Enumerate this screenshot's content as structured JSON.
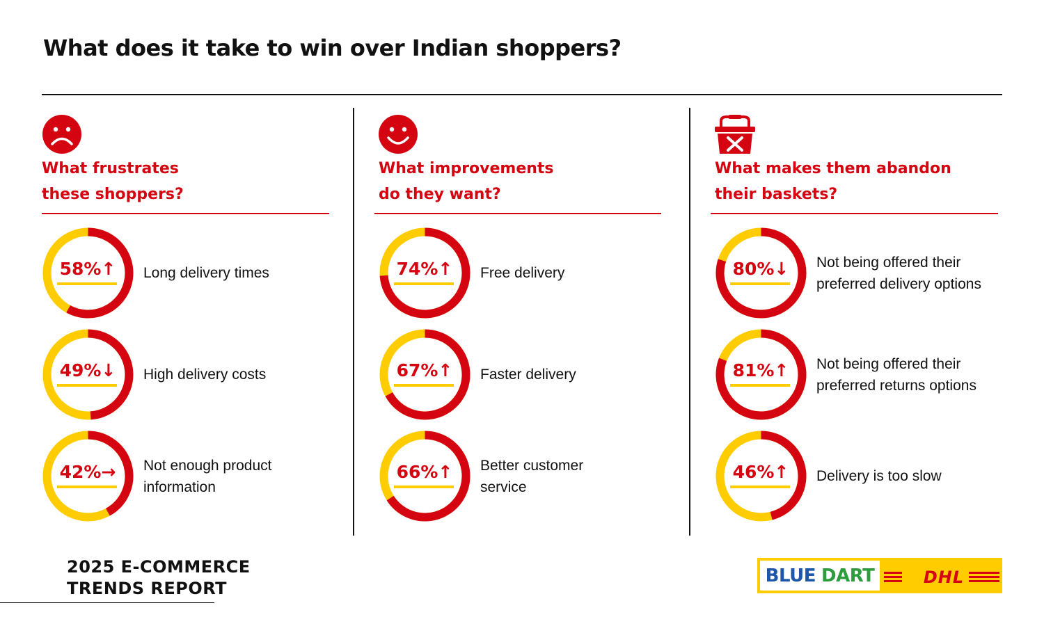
{
  "title": "What does it take to win over Indian shoppers?",
  "footer": {
    "report_title": "2025 E-COMMERCE\nTRENDS REPORT",
    "logo_text": [
      "BLUE",
      "DART",
      "DHL"
    ]
  },
  "colors": {
    "red": "#d40511",
    "yellow": "#ffcc00",
    "text": "#111111"
  },
  "trend_icons": {
    "up": "arrow-up-icon",
    "down": "arrow-down-icon",
    "flat": "arrow-right-icon"
  },
  "columns": [
    {
      "icon": "sad-face-icon",
      "heading": "What frustrates\nthese shoppers?",
      "stats": [
        {
          "label": "58%↑",
          "value": 58,
          "trend": "up",
          "text": "Long delivery times"
        },
        {
          "label": "49%↓",
          "value": 49,
          "trend": "down",
          "text": "High delivery costs"
        },
        {
          "label": "42%→",
          "value": 42,
          "trend": "flat",
          "text": "Not enough product\ninformation"
        }
      ]
    },
    {
      "icon": "happy-face-icon",
      "heading": "What improvements\ndo they want?",
      "stats": [
        {
          "label": "74%↑",
          "value": 74,
          "trend": "up",
          "text": "Free delivery"
        },
        {
          "label": "67%↑",
          "value": 67,
          "trend": "up",
          "text": "Faster delivery"
        },
        {
          "label": "66%↑",
          "value": 66,
          "trend": "up",
          "text": "Better customer\nservice"
        }
      ]
    },
    {
      "icon": "abandoned-basket-icon",
      "heading": "What makes them abandon\ntheir baskets?",
      "stats": [
        {
          "label": "80%↓",
          "value": 80,
          "trend": "down",
          "text": "Not being offered their\npreferred delivery options"
        },
        {
          "label": "81%↑",
          "value": 81,
          "trend": "up",
          "text": "Not being offered their\npreferred returns options"
        },
        {
          "label": "46%↑",
          "value": 46,
          "trend": "up",
          "text": "Delivery is too slow"
        }
      ]
    }
  ],
  "chart_data": {
    "type": "pie",
    "title": "What does it take to win over Indian shoppers?",
    "series": [
      {
        "name": "What frustrates these shoppers?",
        "categories": [
          "Long delivery times",
          "High delivery costs",
          "Not enough product information"
        ],
        "values": [
          58,
          49,
          42
        ]
      },
      {
        "name": "What improvements do they want?",
        "categories": [
          "Free delivery",
          "Faster delivery",
          "Better customer service"
        ],
        "values": [
          74,
          67,
          66
        ]
      },
      {
        "name": "What makes them abandon their baskets?",
        "categories": [
          "Not being offered their preferred delivery options",
          "Not being offered their preferred returns options",
          "Delivery is too slow"
        ],
        "values": [
          80,
          81,
          46
        ]
      }
    ],
    "trends": [
      [
        "up",
        "down",
        "flat"
      ],
      [
        "up",
        "up",
        "up"
      ],
      [
        "down",
        "up",
        "up"
      ]
    ]
  }
}
